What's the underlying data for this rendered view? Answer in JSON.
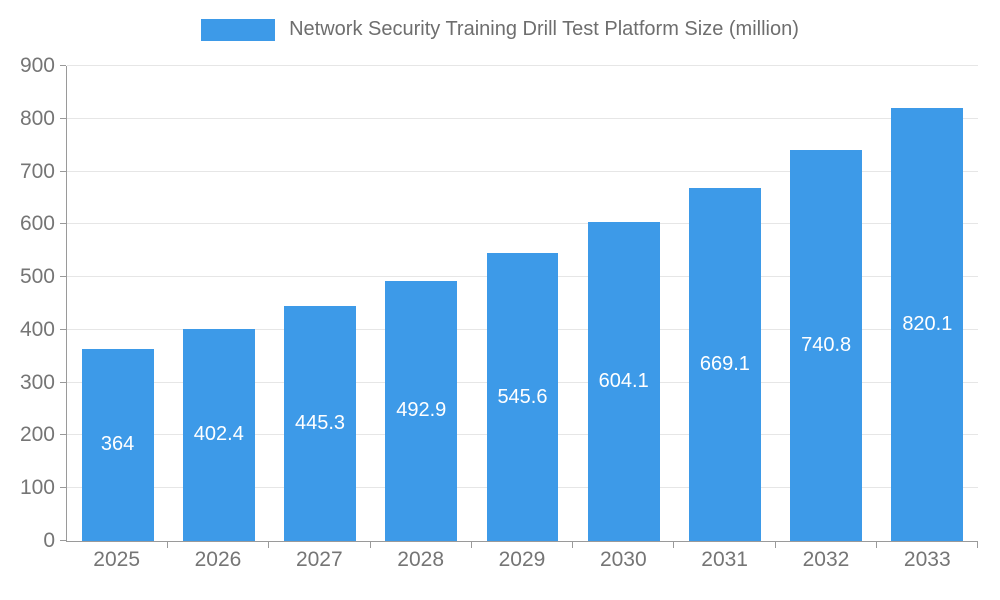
{
  "chart_data": {
    "type": "bar",
    "title": "Network Security Training Drill Test Platform Size (million)",
    "categories": [
      "2025",
      "2026",
      "2027",
      "2028",
      "2029",
      "2030",
      "2031",
      "2032",
      "2033"
    ],
    "values": [
      364,
      402.4,
      445.3,
      492.9,
      545.6,
      604.1,
      669.1,
      740.8,
      820.1
    ],
    "value_labels": [
      "364",
      "402.4",
      "445.3",
      "492.9",
      "545.6",
      "604.1",
      "669.1",
      "740.8",
      "820.1"
    ],
    "xlabel": "",
    "ylabel": "",
    "ylim": [
      0,
      900
    ],
    "ytick_step": 100,
    "ytick_labels": [
      "0",
      "100",
      "200",
      "300",
      "400",
      "500",
      "600",
      "700",
      "800",
      "900"
    ],
    "grid": true,
    "legend_position": "top-center",
    "bar_color": "#3d9ae8",
    "label_color": "#ffffff",
    "axis_text_color": "#757575",
    "grid_color": "#e6e6e6"
  }
}
